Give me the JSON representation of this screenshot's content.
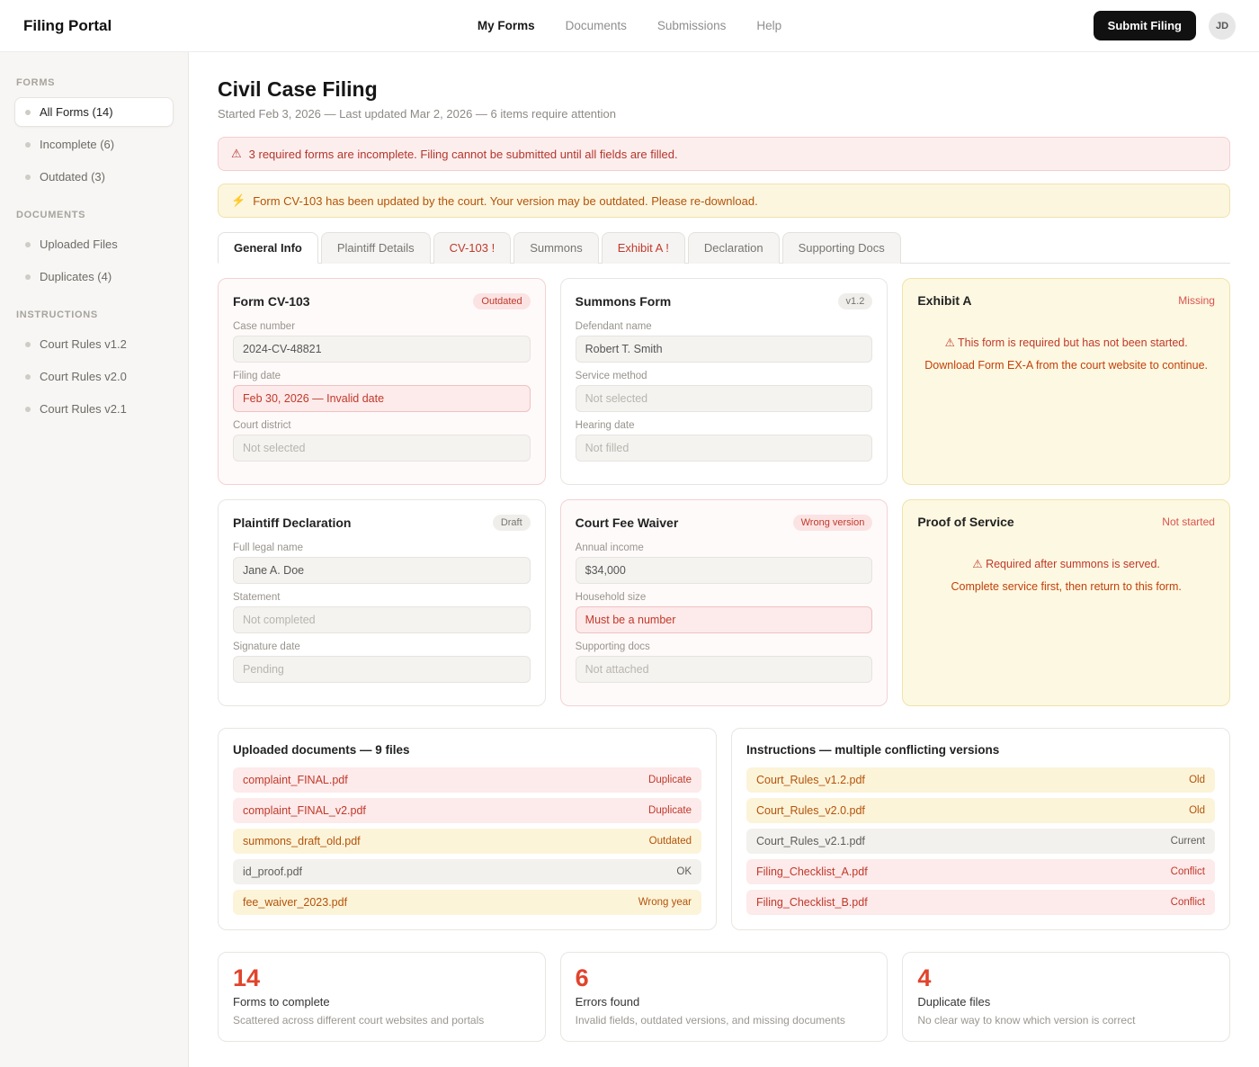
{
  "colors": {
    "error_text": "#c0392b",
    "error_bg": "#fdeeee",
    "warning_text": "#b45309",
    "warning_bg": "#fcf6df",
    "accent_button": "#111111",
    "stat_number": "#e0442c"
  },
  "header": {
    "brand": "Filing Portal",
    "nav": [
      {
        "label": "My Forms",
        "state": "active"
      },
      {
        "label": "Documents",
        "state": "normal"
      },
      {
        "label": "Submissions",
        "state": "normal"
      },
      {
        "label": "Help",
        "state": "normal"
      }
    ],
    "submit_label": "Submit Filing",
    "avatar_initials": "JD"
  },
  "sidebar": {
    "sections": [
      {
        "title": "FORMS",
        "items": [
          {
            "label": "All Forms (14)",
            "state": "active"
          },
          {
            "label": "Incomplete (6)",
            "state": "normal"
          },
          {
            "label": "Outdated (3)",
            "state": "normal"
          }
        ]
      },
      {
        "title": "DOCUMENTS",
        "items": [
          {
            "label": "Uploaded Files",
            "state": "normal"
          },
          {
            "label": "Duplicates (4)",
            "state": "normal"
          }
        ]
      },
      {
        "title": "INSTRUCTIONS",
        "items": [
          {
            "label": "Court Rules v1.2",
            "state": "normal"
          },
          {
            "label": "Court Rules v2.0",
            "state": "normal"
          },
          {
            "label": "Court Rules v2.1",
            "state": "normal"
          }
        ]
      }
    ]
  },
  "page": {
    "title": "Civil Case Filing",
    "subtitle": "Started Feb 3, 2026 — Last updated Mar 2, 2026 — 6 items require attention"
  },
  "alerts": [
    {
      "type": "error",
      "icon": "⚠",
      "text": "3 required forms are incomplete. Filing cannot be submitted until all fields are filled."
    },
    {
      "type": "warning",
      "icon": "⚡",
      "text": "Form CV-103 has been updated by the court. Your version may be outdated. Please re-download."
    }
  ],
  "tabs": [
    {
      "label": "General Info",
      "state": "active"
    },
    {
      "label": "Plaintiff Details",
      "state": "normal"
    },
    {
      "label": "CV-103 !",
      "state": "error"
    },
    {
      "label": "Summons",
      "state": "normal"
    },
    {
      "label": "Exhibit A !",
      "state": "error"
    },
    {
      "label": "Declaration",
      "state": "normal"
    },
    {
      "label": "Supporting Docs",
      "state": "normal"
    }
  ],
  "cards": {
    "cv103": {
      "title": "Form CV-103",
      "badge": "Outdated",
      "tone": "error",
      "fields": [
        {
          "label": "Case number",
          "value": "2024-CV-48821",
          "state": "filled"
        },
        {
          "label": "Filing date",
          "value": "Feb 30, 2026 — Invalid date",
          "state": "error"
        },
        {
          "label": "Court district",
          "value": "Not selected",
          "state": "empty"
        }
      ]
    },
    "summons": {
      "title": "Summons Form",
      "badge": "v1.2",
      "tone": "normal",
      "fields": [
        {
          "label": "Defendant name",
          "value": "Robert T. Smith",
          "state": "filled"
        },
        {
          "label": "Service method",
          "value": "Not selected",
          "state": "empty"
        },
        {
          "label": "Hearing date",
          "value": "Not filled",
          "state": "empty"
        }
      ]
    },
    "exhibit_a": {
      "title": "Exhibit A",
      "badge": "Missing",
      "warning_icon": "⚠",
      "warning_text": "This form is required but has not been started.",
      "hint_text": "Download Form EX-A from the court website to continue."
    },
    "declaration": {
      "title": "Plaintiff Declaration",
      "badge": "Draft",
      "tone": "normal",
      "fields": [
        {
          "label": "Full legal name",
          "value": "Jane A. Doe",
          "state": "filled"
        },
        {
          "label": "Statement",
          "value": "Not completed",
          "state": "empty"
        },
        {
          "label": "Signature date",
          "value": "Pending",
          "state": "empty"
        }
      ]
    },
    "fee_waiver": {
      "title": "Court Fee Waiver",
      "badge": "Wrong version",
      "tone": "error",
      "fields": [
        {
          "label": "Annual income",
          "value": "$34,000",
          "state": "filled"
        },
        {
          "label": "Household size",
          "value": "Must be a number",
          "state": "error"
        },
        {
          "label": "Supporting docs",
          "value": "Not attached",
          "state": "empty"
        }
      ]
    },
    "proof_of_service": {
      "title": "Proof of Service",
      "badge": "Not started",
      "warning_icon": "⚠",
      "warning_text": "Required after summons is served.",
      "hint_text": "Complete service first, then return to this form."
    }
  },
  "uploads": {
    "title": "Uploaded documents — 9 files",
    "rows": [
      {
        "name": "complaint_FINAL.pdf",
        "status": "Duplicate",
        "severity": "error"
      },
      {
        "name": "complaint_FINAL_v2.pdf",
        "status": "Duplicate",
        "severity": "error"
      },
      {
        "name": "summons_draft_old.pdf",
        "status": "Outdated",
        "severity": "warning"
      },
      {
        "name": "id_proof.pdf",
        "status": "OK",
        "severity": "neutral"
      },
      {
        "name": "fee_waiver_2023.pdf",
        "status": "Wrong year",
        "severity": "warning"
      }
    ]
  },
  "instructions_list": {
    "title": "Instructions — multiple conflicting versions",
    "rows": [
      {
        "name": "Court_Rules_v1.2.pdf",
        "status": "Old",
        "severity": "warning"
      },
      {
        "name": "Court_Rules_v2.0.pdf",
        "status": "Old",
        "severity": "warning"
      },
      {
        "name": "Court_Rules_v2.1.pdf",
        "status": "Current",
        "severity": "neutral"
      },
      {
        "name": "Filing_Checklist_A.pdf",
        "status": "Conflict",
        "severity": "error"
      },
      {
        "name": "Filing_Checklist_B.pdf",
        "status": "Conflict",
        "severity": "error"
      }
    ]
  },
  "stats": [
    {
      "value": "14",
      "label": "Forms to complete",
      "desc": "Scattered across different court websites and portals"
    },
    {
      "value": "6",
      "label": "Errors found",
      "desc": "Invalid fields, outdated versions, and missing documents"
    },
    {
      "value": "4",
      "label": "Duplicate files",
      "desc": "No clear way to know which version is correct"
    }
  ]
}
